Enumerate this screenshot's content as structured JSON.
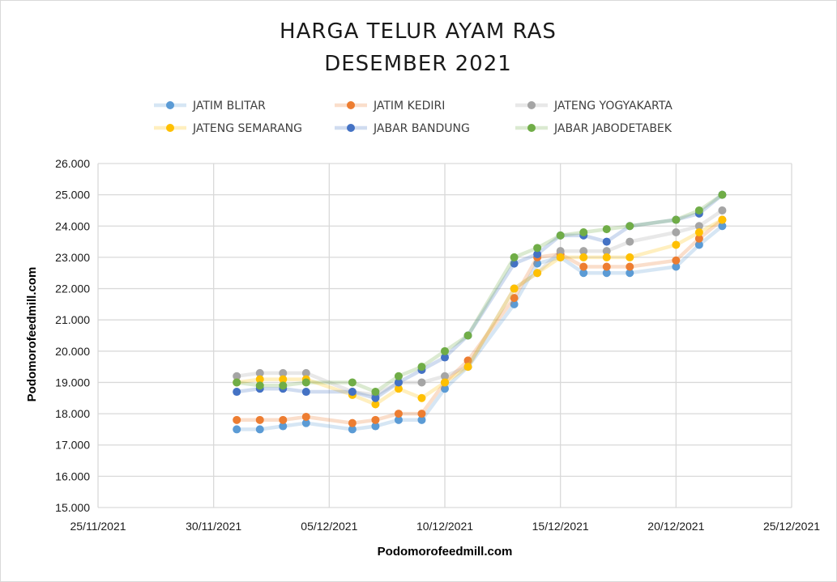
{
  "chart_data": {
    "type": "line",
    "title": [
      "HARGA TELUR AYAM RAS",
      "DESEMBER 2021"
    ],
    "xlabel": "Podomorofeedmill.com",
    "ylabel": "Podomorofeedmill.com",
    "ylim": [
      15000,
      26000
    ],
    "y_ticks": [
      15000,
      16000,
      17000,
      18000,
      19000,
      20000,
      21000,
      22000,
      23000,
      24000,
      25000,
      26000
    ],
    "y_tick_labels": [
      "15.000",
      "16.000",
      "17.000",
      "18.000",
      "19.000",
      "20.000",
      "21.000",
      "22.000",
      "23.000",
      "24.000",
      "25.000",
      "26.000"
    ],
    "xlim": [
      "2021-11-25",
      "2021-12-25"
    ],
    "x_ticks": [
      "2021-11-25",
      "2021-11-30",
      "2021-12-05",
      "2021-12-10",
      "2021-12-15",
      "2021-12-20",
      "2021-12-25"
    ],
    "x_tick_labels": [
      "25/11/2021",
      "30/11/2021",
      "05/12/2021",
      "10/12/2021",
      "15/12/2021",
      "20/12/2021",
      "25/12/2021"
    ],
    "grid": true,
    "legend_position": "top",
    "x": [
      "2021-12-01",
      "2021-12-02",
      "2021-12-03",
      "2021-12-04",
      "2021-12-06",
      "2021-12-07",
      "2021-12-08",
      "2021-12-09",
      "2021-12-10",
      "2021-12-11",
      "2021-12-13",
      "2021-12-14",
      "2021-12-15",
      "2021-12-16",
      "2021-12-17",
      "2021-12-18",
      "2021-12-20",
      "2021-12-21",
      "2021-12-22"
    ],
    "series": [
      {
        "name": "JATIM BLITAR",
        "color": "#5b9bd5",
        "values": [
          17500,
          17500,
          17600,
          17700,
          17500,
          17600,
          17800,
          17800,
          18800,
          19500,
          21500,
          22800,
          23000,
          22500,
          22500,
          22500,
          22700,
          23400,
          24000
        ]
      },
      {
        "name": "JATIM KEDIRI",
        "color": "#ed7d31",
        "values": [
          17800,
          17800,
          17800,
          17900,
          17700,
          17800,
          18000,
          18000,
          19000,
          19700,
          21700,
          23000,
          23100,
          22700,
          22700,
          22700,
          22900,
          23600,
          24200
        ]
      },
      {
        "name": "JATENG YOGYAKARTA",
        "color": "#a5a5a5",
        "values": [
          19200,
          19300,
          19300,
          19300,
          18700,
          18600,
          19000,
          19000,
          19200,
          19500,
          22000,
          22500,
          23200,
          23200,
          23200,
          23500,
          23800,
          24000,
          24500
        ]
      },
      {
        "name": "JATENG SEMARANG",
        "color": "#ffc000",
        "values": [
          19000,
          19100,
          19100,
          19100,
          18600,
          18300,
          18800,
          18500,
          19000,
          19500,
          22000,
          22500,
          23000,
          23000,
          23000,
          23000,
          23400,
          23800,
          24200
        ]
      },
      {
        "name": "JABAR BANDUNG",
        "color": "#4472c4",
        "values": [
          18700,
          18800,
          18800,
          18700,
          18700,
          18500,
          19000,
          19400,
          19800,
          20500,
          22800,
          23100,
          23700,
          23700,
          23500,
          24000,
          24200,
          24400,
          25000
        ]
      },
      {
        "name": "JABAR JABODETABEK",
        "color": "#70ad47",
        "values": [
          19000,
          18900,
          18900,
          19000,
          19000,
          18700,
          19200,
          19500,
          20000,
          20500,
          23000,
          23300,
          23700,
          23800,
          23900,
          24000,
          24200,
          24500,
          25000
        ]
      }
    ]
  }
}
